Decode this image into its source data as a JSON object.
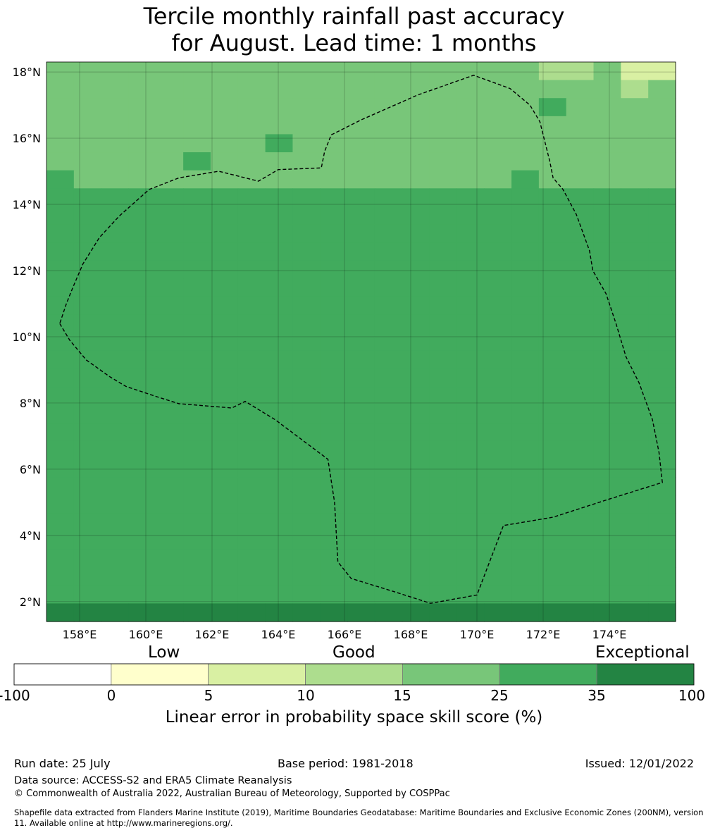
{
  "title": {
    "line1": "Tercile monthly rainfall past accuracy",
    "line2": "for August. Lead time: 1 months"
  },
  "map": {
    "lat_range": [
      1.4,
      18.3
    ],
    "lon_range": [
      157.0,
      176.0
    ],
    "lat_ticks": [
      {
        "v": 2,
        "label": "2°N"
      },
      {
        "v": 4,
        "label": "4°N"
      },
      {
        "v": 6,
        "label": "6°N"
      },
      {
        "v": 8,
        "label": "8°N"
      },
      {
        "v": 10,
        "label": "10°N"
      },
      {
        "v": 12,
        "label": "12°N"
      },
      {
        "v": 14,
        "label": "14°N"
      },
      {
        "v": 16,
        "label": "16°N"
      },
      {
        "v": 18,
        "label": "18°N"
      }
    ],
    "lon_ticks": [
      {
        "v": 158,
        "label": "158°E"
      },
      {
        "v": 160,
        "label": "160°E"
      },
      {
        "v": 162,
        "label": "162°E"
      },
      {
        "v": 164,
        "label": "164°E"
      },
      {
        "v": 166,
        "label": "166°E"
      },
      {
        "v": 168,
        "label": "168°E"
      },
      {
        "v": 170,
        "label": "170°E"
      },
      {
        "v": 172,
        "label": "172°E"
      },
      {
        "v": 174,
        "label": "174°E"
      }
    ],
    "cell_colors": [
      "#ffffff",
      "#ffffcc",
      "#d9f0a3",
      "#addd8e",
      "#78c679",
      "#41ab5d",
      "#238443"
    ],
    "cell_rows_north_to_south": [
      "44444444444444444433422",
      "44444444444444444444434",
      "44444444444444444454444",
      "44444444444444444444444",
      "44444444544444444444444",
      "44444544444444444444444",
      "54444444444444444544444",
      "55555555555555555555555",
      "55555555555555555555555",
      "55555555555555555555555",
      "55555555555555555555555",
      "55555555555555555555555",
      "55555555555555555555555",
      "55555555555555555555555",
      "55555555555555555555555",
      "55555555555555555555555",
      "55555555555555555555555",
      "55555555555555555555555",
      "55555555555555555555555",
      "55555555555555555555555",
      "55555555555555555555555",
      "55555555555555555555555",
      "55555555555555555555555",
      "55555555555555555555555",
      "55555555555555555555555",
      "55555555555555555555555",
      "55555555555555555555555",
      "55555555555555555555555",
      "55555555555555555555555",
      "55555555555555555555555",
      "66666666666666666666666"
    ],
    "eez_boundary_lonlat": [
      [
        157.4,
        10.4
      ],
      [
        157.7,
        9.9
      ],
      [
        158.2,
        9.3
      ],
      [
        158.9,
        8.8
      ],
      [
        159.4,
        8.5
      ],
      [
        160.3,
        8.2
      ],
      [
        161.0,
        7.98
      ],
      [
        162.6,
        7.85
      ],
      [
        163.0,
        8.05
      ],
      [
        163.9,
        7.5
      ],
      [
        164.7,
        6.9
      ],
      [
        165.5,
        6.3
      ],
      [
        165.7,
        5.0
      ],
      [
        165.8,
        3.2
      ],
      [
        166.2,
        2.7
      ],
      [
        167.5,
        2.3
      ],
      [
        168.6,
        1.95
      ],
      [
        170.0,
        2.2
      ],
      [
        170.8,
        4.3
      ],
      [
        172.3,
        4.55
      ],
      [
        174.0,
        5.1
      ],
      [
        175.6,
        5.6
      ],
      [
        175.5,
        6.5
      ],
      [
        175.3,
        7.5
      ],
      [
        174.9,
        8.6
      ],
      [
        174.5,
        9.4
      ],
      [
        174.2,
        10.4
      ],
      [
        173.9,
        11.3
      ],
      [
        173.5,
        12.0
      ],
      [
        173.4,
        12.6
      ],
      [
        173.0,
        13.7
      ],
      [
        172.6,
        14.45
      ],
      [
        172.3,
        14.8
      ],
      [
        172.2,
        15.3
      ],
      [
        171.9,
        16.5
      ],
      [
        171.6,
        17.0
      ],
      [
        171.0,
        17.5
      ],
      [
        169.9,
        17.9
      ],
      [
        168.2,
        17.3
      ],
      [
        166.5,
        16.55
      ],
      [
        165.6,
        16.1
      ],
      [
        165.4,
        15.6
      ],
      [
        165.3,
        15.1
      ],
      [
        164.0,
        15.05
      ],
      [
        163.4,
        14.7
      ],
      [
        162.2,
        15.0
      ],
      [
        161.0,
        14.8
      ],
      [
        160.1,
        14.45
      ],
      [
        159.2,
        13.65
      ],
      [
        158.6,
        13.0
      ],
      [
        158.1,
        12.2
      ],
      [
        157.8,
        11.5
      ],
      [
        157.6,
        11.0
      ],
      [
        157.4,
        10.4
      ]
    ]
  },
  "colorbar": {
    "category_labels": [
      "Low",
      "Good",
      "Exceptional"
    ],
    "colors": [
      "#ffffff",
      "#ffffcc",
      "#d9f0a3",
      "#addd8e",
      "#78c679",
      "#41ab5d",
      "#238443"
    ],
    "ticks": [
      "-100",
      "0",
      "5",
      "10",
      "15",
      "25",
      "35",
      "100"
    ],
    "caption": "Linear error in probability space skill score (%)"
  },
  "footer": {
    "run_date": "Run date: 25 July",
    "base_period": "Base period: 1981-2018",
    "issued": "Issued: 12/01/2022",
    "data_source": "Data source: ACCESS-S2 and ERA5 Climate Reanalysis",
    "copyright": "© Commonwealth of Australia 2022, Australian Bureau of Meteorology, Supported by COSPPac",
    "shapefile": "Shapefile data extracted from Flanders Marine Institute (2019), Maritime Boundaries Geodatabase: Maritime Boundaries and Exclusive Economic Zones (200NM), version 11. Available online at http://www.marineregions.org/."
  }
}
